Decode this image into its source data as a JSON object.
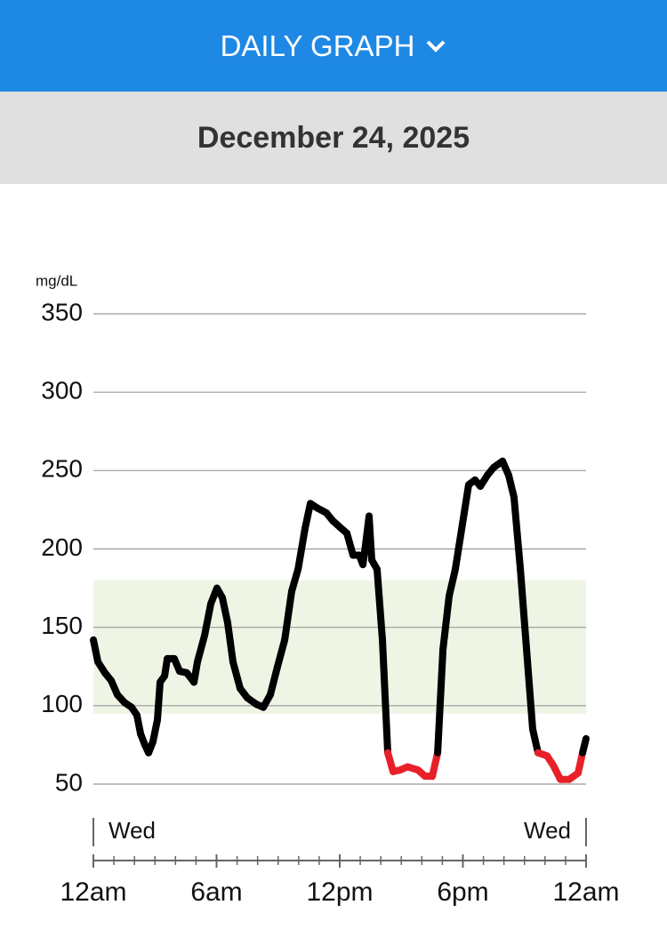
{
  "header": {
    "title": "DAILY GRAPH",
    "date": "December 24, 2025"
  },
  "chart_data": {
    "type": "line",
    "y_unit": "mg/dL",
    "x": [
      0,
      0.22,
      0.56,
      0.87,
      1.17,
      1.52,
      1.86,
      2.12,
      2.3,
      2.51,
      2.69,
      2.9,
      3.12,
      3.25,
      3.47,
      3.6,
      3.94,
      4.2,
      4.55,
      4.9,
      5.07,
      5.42,
      5.72,
      6.02,
      6.28,
      6.54,
      6.8,
      7.15,
      7.5,
      7.93,
      8.28,
      8.62,
      8.97,
      9.32,
      9.66,
      9.97,
      10.31,
      10.57,
      10.92,
      11.35,
      11.66,
      12.0,
      12.35,
      12.65,
      12.95,
      13.13,
      13.3,
      13.43,
      13.56,
      13.82,
      14.08,
      14.34,
      14.6,
      14.95,
      15.3,
      15.81,
      16.16,
      16.51,
      16.77,
      17.03,
      17.33,
      17.63,
      17.98,
      18.28,
      18.59,
      18.85,
      19.19,
      19.5,
      19.93,
      20.23,
      20.49,
      20.8,
      21.1,
      21.4,
      21.66,
      22.1,
      22.4,
      22.75,
      23.18,
      23.61,
      23.83,
      24.0
    ],
    "series": [
      {
        "color": "#000000",
        "values": [
          142,
          128,
          121,
          116,
          107,
          102,
          99,
          94,
          82,
          75,
          70,
          77,
          91,
          115,
          119,
          130,
          130,
          122,
          121,
          115,
          128,
          145,
          165,
          175,
          169,
          153,
          128,
          111,
          105,
          101,
          99,
          107,
          125,
          142,
          173,
          187,
          213,
          229,
          226,
          223,
          218,
          214,
          210,
          196,
          196,
          190,
          207,
          221,
          193,
          187,
          142,
          70,
          58,
          59,
          61,
          59,
          55,
          55,
          70,
          136,
          170,
          187,
          216,
          241,
          244,
          240,
          247,
          252,
          256,
          247,
          233,
          187,
          136,
          85,
          70,
          68,
          62,
          53,
          53,
          57,
          70,
          79
        ]
      }
    ],
    "low_threshold": 70,
    "low_color": "#e8202a",
    "target_range": [
      95,
      180
    ],
    "target_color": "#eef5e5",
    "ylim": [
      50,
      350
    ],
    "yticks": [
      50,
      100,
      150,
      200,
      250,
      300,
      350
    ],
    "grid": true,
    "xlim": [
      0,
      24
    ],
    "xticks": [
      {
        "value": 0,
        "label": "12am"
      },
      {
        "value": 6,
        "label": "6am"
      },
      {
        "value": 12,
        "label": "12pm"
      },
      {
        "value": 18,
        "label": "6pm"
      },
      {
        "value": 24,
        "label": "12am"
      }
    ],
    "minor_xticks": [
      1,
      2,
      3,
      4,
      5,
      7,
      8,
      9,
      10,
      11,
      13,
      14,
      15,
      16,
      17,
      19,
      20,
      21,
      22,
      23
    ],
    "day_labels": [
      "Wed",
      "Wed"
    ]
  }
}
